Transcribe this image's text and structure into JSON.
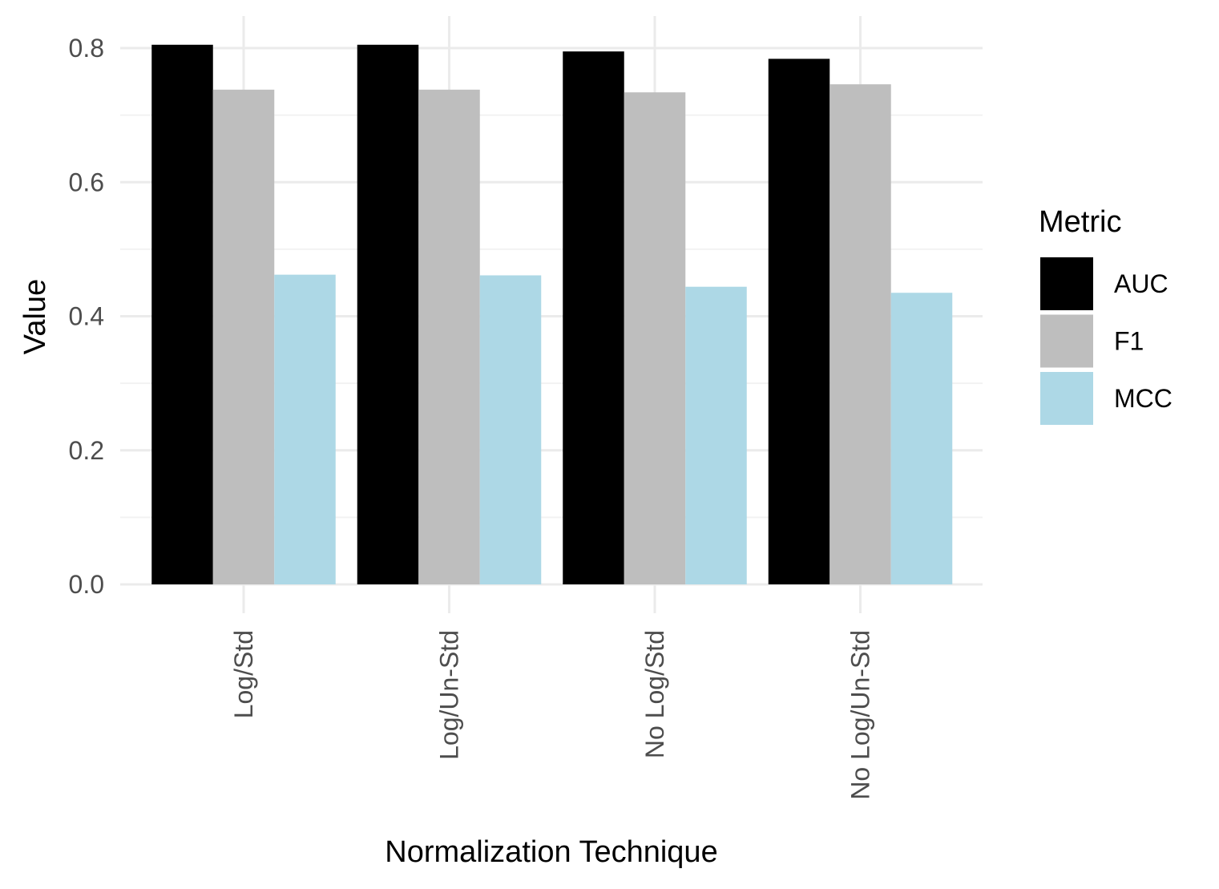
{
  "chart_data": {
    "type": "bar",
    "xlabel": "Normalization Technique",
    "ylabel": "Value",
    "categories": [
      "Log/Std",
      "Log/Un-Std",
      "No Log/Std",
      "No Log/Un-Std"
    ],
    "series": [
      {
        "name": "AUC",
        "color": "#000000",
        "values": [
          0.805,
          0.805,
          0.795,
          0.784
        ]
      },
      {
        "name": "F1",
        "color": "#bebebe",
        "values": [
          0.738,
          0.738,
          0.734,
          0.746
        ]
      },
      {
        "name": "MCC",
        "color": "#add8e6",
        "values": [
          0.462,
          0.461,
          0.444,
          0.435
        ]
      }
    ],
    "ylim": [
      0,
      0.8
    ],
    "yticks": [
      "0.0",
      "0.2",
      "0.4",
      "0.6",
      "0.8"
    ],
    "grid": true,
    "legend": {
      "title": "Metric",
      "placement": "right"
    }
  }
}
